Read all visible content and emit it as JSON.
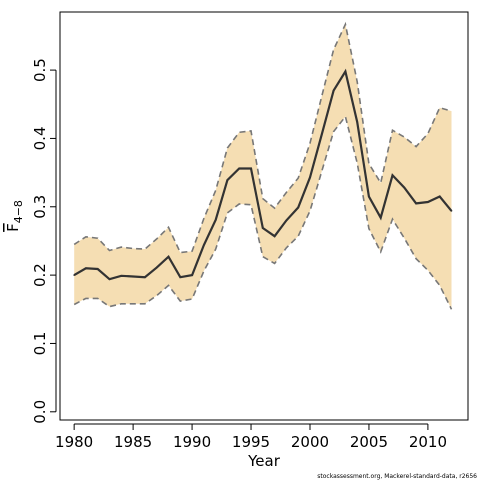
{
  "chart_data": {
    "type": "area",
    "xlabel": "Year",
    "ylabel": "F",
    "ylabel_sub": "4−8",
    "xlim": [
      1978.8,
      2013.4
    ],
    "ylim": [
      -0.012,
      0.585
    ],
    "xticks": [
      1980,
      1985,
      1990,
      1995,
      2000,
      2005,
      2010
    ],
    "xtick_labels": [
      "1980",
      "1985",
      "1990",
      "1995",
      "2000",
      "2005",
      "2010"
    ],
    "yticks": [
      0.0,
      0.1,
      0.2,
      0.3,
      0.4,
      0.5
    ],
    "ytick_labels": [
      "0.0",
      "0.1",
      "0.2",
      "0.3",
      "0.4",
      "0.5"
    ],
    "grid": false,
    "band_color": "#f5deb3",
    "line_color": "#333333",
    "bound_color": "#777777",
    "x": [
      1980,
      1981,
      1982,
      1983,
      1984,
      1985,
      1986,
      1987,
      1988,
      1989,
      1990,
      1991,
      1992,
      1993,
      1994,
      1995,
      1996,
      1997,
      1998,
      1999,
      2000,
      2001,
      2002,
      2003,
      2004,
      2005,
      2006,
      2007,
      2008,
      2009,
      2010,
      2011,
      2012
    ],
    "series": [
      {
        "values": [
          0.2,
          0.21,
          0.209,
          0.194,
          0.199,
          0.198,
          0.197,
          0.211,
          0.227,
          0.197,
          0.2,
          0.244,
          0.281,
          0.339,
          0.356,
          0.356,
          0.269,
          0.257,
          0.28,
          0.299,
          0.343,
          0.406,
          0.47,
          0.498,
          0.424,
          0.315,
          0.284,
          0.346,
          0.328,
          0.305,
          0.307,
          0.315,
          0.294
        ]
      },
      {
        "values": [
          0.245,
          0.256,
          0.254,
          0.236,
          0.241,
          0.239,
          0.238,
          0.253,
          0.27,
          0.233,
          0.235,
          0.283,
          0.324,
          0.386,
          0.409,
          0.411,
          0.312,
          0.298,
          0.321,
          0.342,
          0.393,
          0.462,
          0.53,
          0.567,
          0.483,
          0.363,
          0.335,
          0.412,
          0.402,
          0.388,
          0.407,
          0.445,
          0.44
        ]
      },
      {
        "values": [
          0.157,
          0.166,
          0.166,
          0.154,
          0.158,
          0.158,
          0.158,
          0.17,
          0.185,
          0.162,
          0.165,
          0.206,
          0.238,
          0.291,
          0.304,
          0.303,
          0.227,
          0.217,
          0.24,
          0.257,
          0.294,
          0.352,
          0.41,
          0.432,
          0.364,
          0.268,
          0.234,
          0.282,
          0.254,
          0.224,
          0.207,
          0.185,
          0.15
        ]
      }
    ]
  },
  "footer_text": "stockassessment.org, Mackerel-standard-data, r2656"
}
